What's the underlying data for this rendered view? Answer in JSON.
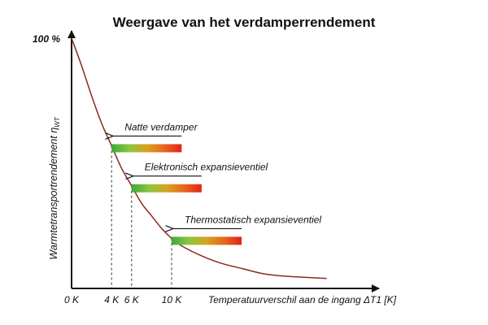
{
  "chart_data": {
    "type": "line",
    "title": "Weergave van het verdamperrendement",
    "ylabel": "Warmtetransportrendement",
    "ylabel_symbol": "η",
    "ylabel_subscript": "WT",
    "xlabel": "Temperatuurverschil aan de ingang ΔT1 [K]",
    "y_top_label": "100 %",
    "x_ticks": [
      {
        "x": 0,
        "label": "0 K"
      },
      {
        "x": 4,
        "label": "4 K"
      },
      {
        "x": 6,
        "label": "6 K"
      },
      {
        "x": 10,
        "label": "10 K"
      }
    ],
    "series": [
      {
        "values": [
          [
            0,
            100
          ],
          [
            1,
            89
          ],
          [
            2,
            77
          ],
          [
            3,
            66
          ],
          [
            4,
            57
          ],
          [
            5,
            48
          ],
          [
            6,
            41
          ],
          [
            7,
            34
          ],
          [
            8,
            29
          ],
          [
            9,
            24
          ],
          [
            10,
            20
          ],
          [
            11,
            17
          ],
          [
            13,
            13
          ],
          [
            15,
            10
          ],
          [
            17,
            8
          ],
          [
            19,
            6
          ],
          [
            21,
            5
          ],
          [
            25.5,
            4
          ]
        ]
      }
    ],
    "annotations": [
      {
        "label": "Natte verdamper",
        "at_x": 4,
        "curve_y": 57,
        "bar_from_x": 4,
        "bar_to_x": 11
      },
      {
        "label": "Elektronisch expansieventiel",
        "at_x": 6,
        "curve_y": 41,
        "bar_from_x": 6,
        "bar_to_x": 13
      },
      {
        "label": "Thermostatisch expansieventiel",
        "at_x": 10,
        "curve_y": 20,
        "bar_from_x": 10,
        "bar_to_x": 17
      }
    ],
    "bar_gradient": [
      "#3daa3a",
      "#8cc63f",
      "#d6a320",
      "#e8661e",
      "#e2231a"
    ],
    "curve_color": "#8b2a1b",
    "xlim": [
      0,
      26
    ],
    "ylim": [
      0,
      100
    ],
    "grid": false
  }
}
